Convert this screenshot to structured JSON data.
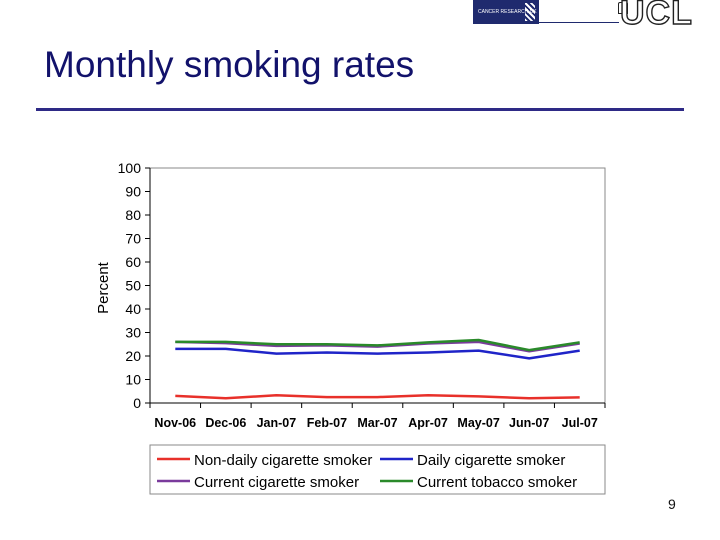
{
  "header": {
    "cr_logo_text": "CANCER RESEARCH UK",
    "ucl_logo_text": "UCL"
  },
  "slide": {
    "title": "Monthly smoking rates",
    "page_number": "9"
  },
  "colors": {
    "non_daily": "#e8302a",
    "daily": "#1f24c8",
    "current_cigarette": "#7a3b9c",
    "current_tobacco": "#2a8a2a",
    "title": "#12126b",
    "rule": "#2e2a86"
  },
  "chart_data": {
    "type": "line",
    "title": "",
    "xlabel": "",
    "ylabel": "Percent",
    "ylim": [
      0,
      100
    ],
    "yticks": [
      "0",
      "10",
      "20",
      "30",
      "40",
      "50",
      "60",
      "70",
      "80",
      "90",
      "100"
    ],
    "categories": [
      "Nov-06",
      "Dec-06",
      "Jan-07",
      "Feb-07",
      "Mar-07",
      "Apr-07",
      "May-07",
      "Jun-07",
      "Jul-07"
    ],
    "series": [
      {
        "name": "Non-daily cigarette smoker",
        "color": "#e8302a",
        "values": [
          3,
          2,
          3.3,
          2.5,
          2.5,
          3.3,
          2.8,
          2,
          2.4
        ]
      },
      {
        "name": "Daily cigarette smoker",
        "color": "#1f24c8",
        "values": [
          23,
          23,
          21,
          21.5,
          21,
          21.5,
          22.3,
          19,
          22.3
        ]
      },
      {
        "name": "Current cigarette smoker",
        "color": "#7a3b9c",
        "values": [
          26,
          25.5,
          24.3,
          24.5,
          24,
          25.3,
          26,
          22,
          25.3
        ]
      },
      {
        "name": "Current tobacco smoker",
        "color": "#2a8a2a",
        "values": [
          26,
          26,
          25,
          25,
          24.5,
          25.8,
          26.8,
          22.5,
          25.8
        ]
      }
    ],
    "legend": {
      "position": "bottom",
      "items": [
        "Non-daily cigarette smoker",
        "Daily cigarette smoker",
        "Current cigarette smoker",
        "Current tobacco smoker"
      ]
    },
    "grid": false
  }
}
